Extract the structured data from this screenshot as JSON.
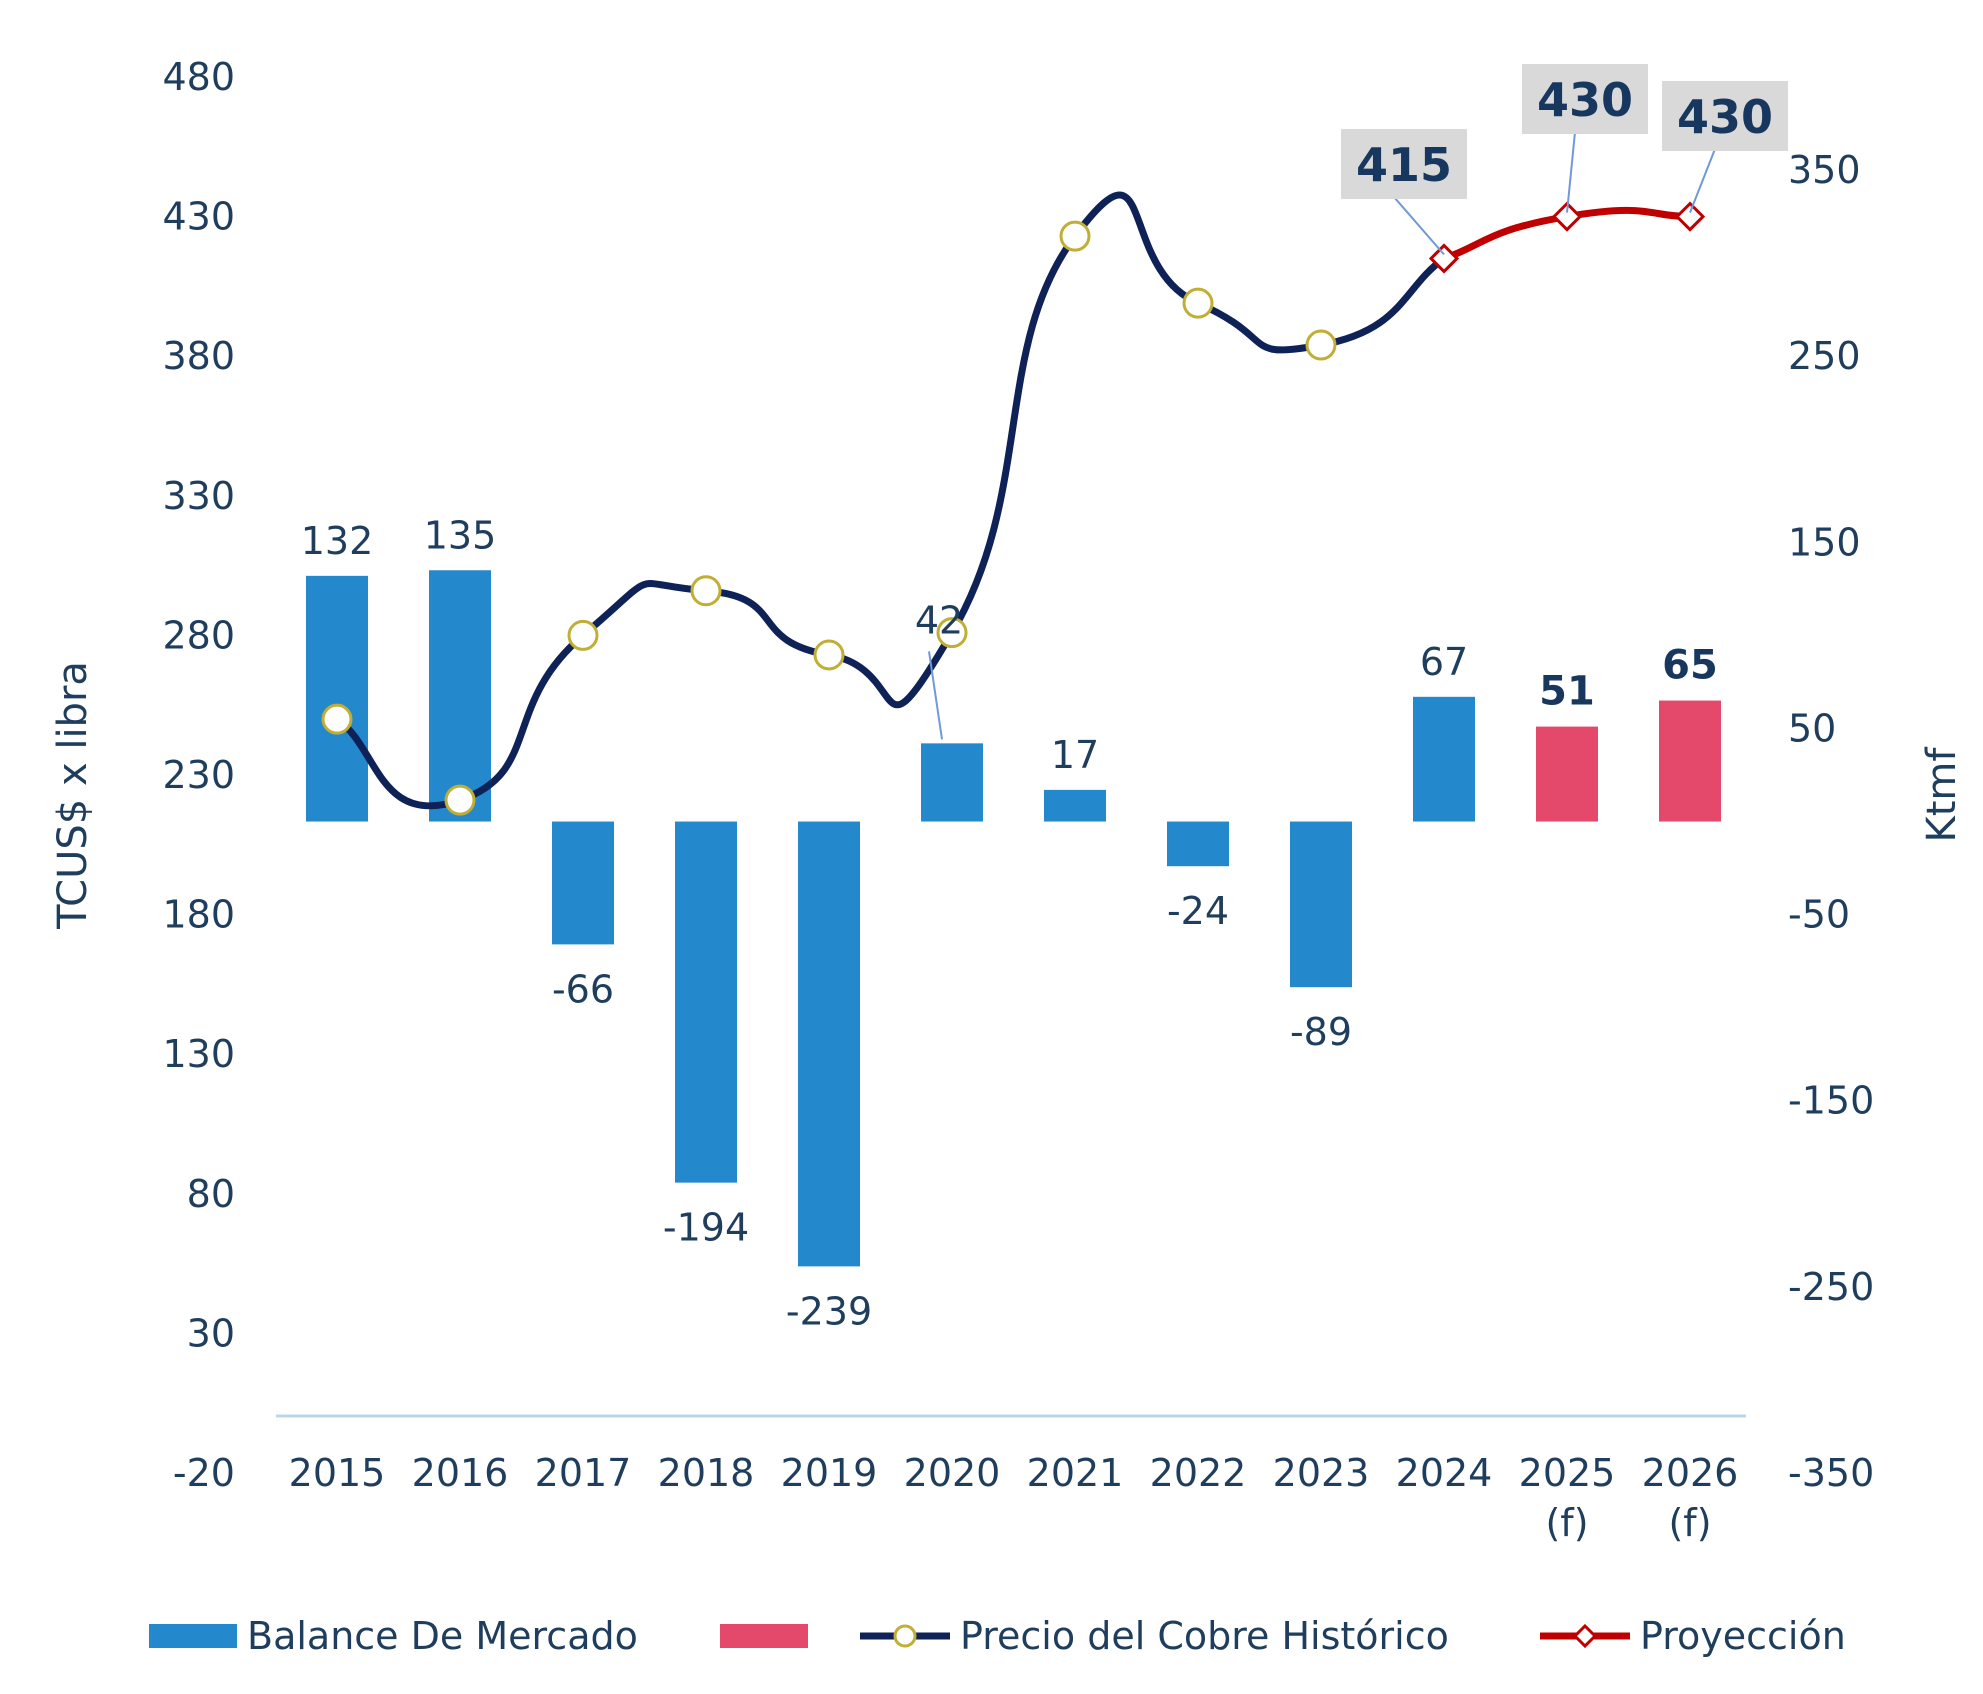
{
  "chart_data": {
    "type": "bar+line",
    "categories": [
      "2015",
      "2016",
      "2017",
      "2018",
      "2019",
      "2020",
      "2021",
      "2022",
      "2023",
      "2024",
      "2025\n(f)",
      "2026\n(f)"
    ],
    "y_left": {
      "label": "TCUS$ x libra",
      "ticks": [
        -20,
        30,
        80,
        130,
        180,
        230,
        280,
        330,
        380,
        430,
        480
      ],
      "range": [
        -20,
        480
      ]
    },
    "y_right": {
      "label": "Ktmf",
      "ticks": [
        -350,
        -250,
        -150,
        -50,
        50,
        150,
        250,
        350
      ],
      "range": [
        -350,
        400
      ]
    },
    "series": [
      {
        "name": "Balance De Mercado",
        "type": "bar",
        "axis": "right",
        "color": "#2388cc",
        "values": [
          132,
          135,
          -66,
          -194,
          -239,
          42,
          17,
          -24,
          -89,
          67,
          null,
          null
        ],
        "labels": [
          "132",
          "135",
          "-66",
          "-194",
          "-239",
          "42",
          "17",
          "-24",
          "-89",
          "67",
          "",
          ""
        ]
      },
      {
        "name": "",
        "type": "bar",
        "axis": "right",
        "color": "#e4496b",
        "values": [
          null,
          null,
          null,
          null,
          null,
          null,
          null,
          null,
          null,
          null,
          51,
          65
        ],
        "labels": [
          "",
          "",
          "",
          "",
          "",
          "",
          "",
          "",
          "",
          "",
          "51",
          "65"
        ]
      },
      {
        "name": "Precio del Cobre Histórico",
        "type": "line",
        "axis": "left",
        "color": "#0e2257",
        "marker_color": "#c0ae35",
        "values": [
          250,
          221,
          280,
          296,
          273,
          281,
          423,
          399,
          384,
          415,
          null,
          null
        ]
      },
      {
        "name": "Proyección",
        "type": "line",
        "axis": "left",
        "color": "#c00000",
        "values": [
          null,
          null,
          null,
          null,
          null,
          null,
          null,
          null,
          null,
          415,
          430,
          430
        ],
        "labels": [
          "",
          "",
          "",
          "",
          "",
          "",
          "",
          "",
          "",
          "415",
          "430",
          "430"
        ]
      }
    ],
    "legend": {
      "position": "bottom"
    }
  }
}
